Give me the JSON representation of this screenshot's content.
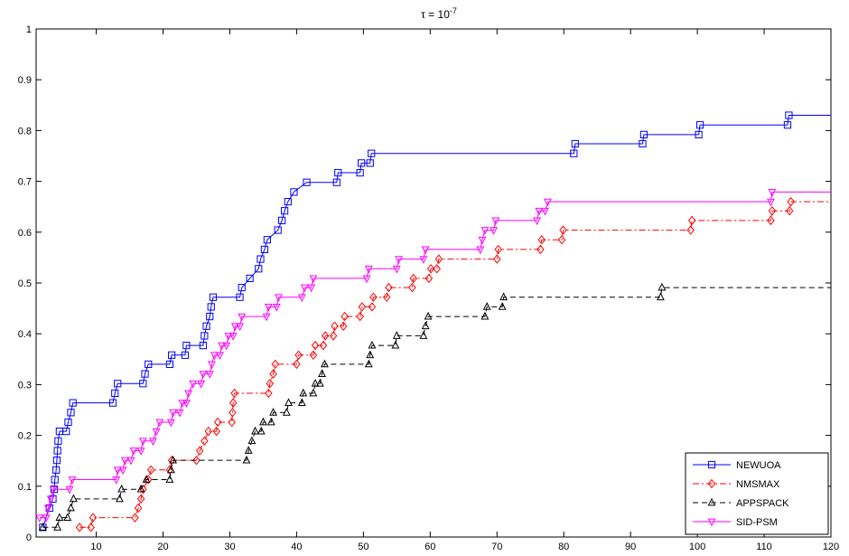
{
  "chart_data": {
    "type": "line",
    "title": "τ = 10",
    "title_exponent": "-7",
    "xlabel": "",
    "ylabel": "",
    "xlim": [
      1,
      120
    ],
    "ylim": [
      0,
      1
    ],
    "xticks": [
      10,
      20,
      30,
      40,
      50,
      60,
      70,
      80,
      90,
      100,
      110,
      120
    ],
    "yticks": [
      0,
      0.1,
      0.2,
      0.3,
      0.4,
      0.5,
      0.6,
      0.7,
      0.8,
      0.9,
      1
    ],
    "grid": false,
    "legend_position": "bottom-right",
    "series": [
      {
        "name": "NEWUOA",
        "color": "#0000ff",
        "dash": "solid",
        "marker": "square",
        "points": [
          [
            2,
            0.019
          ],
          [
            3,
            0.057
          ],
          [
            3.5,
            0.075
          ],
          [
            3.7,
            0.094
          ],
          [
            3.8,
            0.113
          ],
          [
            4,
            0.132
          ],
          [
            4.1,
            0.151
          ],
          [
            4.2,
            0.17
          ],
          [
            4.3,
            0.189
          ],
          [
            4.5,
            0.208
          ],
          [
            5.5,
            0.208
          ],
          [
            5.8,
            0.226
          ],
          [
            6.2,
            0.245
          ],
          [
            6.5,
            0.264
          ],
          [
            12.5,
            0.264
          ],
          [
            12.8,
            0.283
          ],
          [
            13.2,
            0.302
          ],
          [
            17,
            0.302
          ],
          [
            17.3,
            0.321
          ],
          [
            17.8,
            0.34
          ],
          [
            21,
            0.34
          ],
          [
            21.3,
            0.358
          ],
          [
            23.3,
            0.358
          ],
          [
            23.5,
            0.377
          ],
          [
            26,
            0.377
          ],
          [
            26.2,
            0.396
          ],
          [
            26.5,
            0.415
          ],
          [
            27,
            0.434
          ],
          [
            27.2,
            0.453
          ],
          [
            27.5,
            0.472
          ],
          [
            31.5,
            0.472
          ],
          [
            31.8,
            0.491
          ],
          [
            33,
            0.509
          ],
          [
            34.3,
            0.528
          ],
          [
            34.6,
            0.547
          ],
          [
            35.2,
            0.566
          ],
          [
            35.6,
            0.585
          ],
          [
            37.2,
            0.604
          ],
          [
            37.8,
            0.623
          ],
          [
            38.2,
            0.642
          ],
          [
            38.7,
            0.66
          ],
          [
            39.6,
            0.679
          ],
          [
            41.5,
            0.698
          ],
          [
            46,
            0.698
          ],
          [
            46.2,
            0.717
          ],
          [
            49.5,
            0.717
          ],
          [
            49.7,
            0.736
          ],
          [
            51,
            0.736
          ],
          [
            51.2,
            0.755
          ],
          [
            81.5,
            0.755
          ],
          [
            81.7,
            0.774
          ],
          [
            91.8,
            0.774
          ],
          [
            92,
            0.792
          ],
          [
            100.2,
            0.792
          ],
          [
            100.4,
            0.811
          ],
          [
            113.5,
            0.811
          ],
          [
            113.7,
            0.83
          ],
          [
            120,
            0.83
          ]
        ]
      },
      {
        "name": "NMSMAX",
        "color": "#ff0000",
        "dash": "dashdot",
        "marker": "diamond",
        "points": [
          [
            7.5,
            0.019
          ],
          [
            9.2,
            0.019
          ],
          [
            9.5,
            0.038
          ],
          [
            15.8,
            0.038
          ],
          [
            16.3,
            0.057
          ],
          [
            16.7,
            0.075
          ],
          [
            17,
            0.094
          ],
          [
            17.8,
            0.113
          ],
          [
            18.2,
            0.132
          ],
          [
            21,
            0.132
          ],
          [
            21.3,
            0.151
          ],
          [
            25,
            0.151
          ],
          [
            25.5,
            0.17
          ],
          [
            26.2,
            0.189
          ],
          [
            26.8,
            0.208
          ],
          [
            28,
            0.208
          ],
          [
            28.2,
            0.226
          ],
          [
            30.3,
            0.226
          ],
          [
            30.4,
            0.245
          ],
          [
            30.5,
            0.264
          ],
          [
            30.7,
            0.283
          ],
          [
            35.8,
            0.283
          ],
          [
            36,
            0.302
          ],
          [
            36.5,
            0.321
          ],
          [
            36.8,
            0.34
          ],
          [
            40,
            0.34
          ],
          [
            40.3,
            0.358
          ],
          [
            42.5,
            0.358
          ],
          [
            42.8,
            0.377
          ],
          [
            44,
            0.377
          ],
          [
            44.3,
            0.396
          ],
          [
            45.5,
            0.396
          ],
          [
            45.7,
            0.415
          ],
          [
            47,
            0.415
          ],
          [
            47.2,
            0.434
          ],
          [
            49.5,
            0.434
          ],
          [
            49.8,
            0.453
          ],
          [
            51.3,
            0.453
          ],
          [
            51.5,
            0.472
          ],
          [
            53.5,
            0.472
          ],
          [
            53.8,
            0.491
          ],
          [
            57.3,
            0.491
          ],
          [
            57.5,
            0.509
          ],
          [
            59.8,
            0.509
          ],
          [
            60.1,
            0.528
          ],
          [
            61,
            0.528
          ],
          [
            61.3,
            0.547
          ],
          [
            70,
            0.547
          ],
          [
            70.2,
            0.566
          ],
          [
            76.5,
            0.566
          ],
          [
            76.7,
            0.585
          ],
          [
            79.7,
            0.585
          ],
          [
            79.9,
            0.604
          ],
          [
            99,
            0.604
          ],
          [
            99.2,
            0.623
          ],
          [
            111,
            0.623
          ],
          [
            111.2,
            0.642
          ],
          [
            113.8,
            0.642
          ],
          [
            114,
            0.66
          ],
          [
            120,
            0.66
          ]
        ]
      },
      {
        "name": "APPSPACK",
        "color": "#000000",
        "dash": "dashed",
        "marker": "triangle-up",
        "points": [
          [
            2,
            0.019
          ],
          [
            4.2,
            0.019
          ],
          [
            4.5,
            0.038
          ],
          [
            5.7,
            0.038
          ],
          [
            6.2,
            0.057
          ],
          [
            6.6,
            0.075
          ],
          [
            13.5,
            0.075
          ],
          [
            13.8,
            0.094
          ],
          [
            16.7,
            0.094
          ],
          [
            17.5,
            0.113
          ],
          [
            21,
            0.113
          ],
          [
            21.2,
            0.132
          ],
          [
            21.5,
            0.151
          ],
          [
            32.5,
            0.151
          ],
          [
            32.8,
            0.17
          ],
          [
            33.3,
            0.189
          ],
          [
            33.8,
            0.208
          ],
          [
            34.7,
            0.208
          ],
          [
            35,
            0.226
          ],
          [
            36.2,
            0.226
          ],
          [
            36.5,
            0.245
          ],
          [
            38.5,
            0.245
          ],
          [
            38.8,
            0.264
          ],
          [
            40.8,
            0.264
          ],
          [
            41,
            0.283
          ],
          [
            42.5,
            0.283
          ],
          [
            42.8,
            0.302
          ],
          [
            43.5,
            0.302
          ],
          [
            43.8,
            0.321
          ],
          [
            44.2,
            0.34
          ],
          [
            50.8,
            0.34
          ],
          [
            51,
            0.358
          ],
          [
            51.3,
            0.377
          ],
          [
            54.8,
            0.377
          ],
          [
            55,
            0.396
          ],
          [
            59,
            0.396
          ],
          [
            59.3,
            0.415
          ],
          [
            59.7,
            0.434
          ],
          [
            68.2,
            0.434
          ],
          [
            68.5,
            0.453
          ],
          [
            70.8,
            0.453
          ],
          [
            71,
            0.472
          ],
          [
            94.5,
            0.472
          ],
          [
            94.7,
            0.491
          ],
          [
            120,
            0.491
          ]
        ]
      },
      {
        "name": "SID-PSM",
        "color": "#ff00ff",
        "dash": "solid",
        "marker": "triangle-down",
        "points": [
          [
            1.5,
            0.038
          ],
          [
            2.5,
            0.038
          ],
          [
            2.8,
            0.057
          ],
          [
            3.2,
            0.075
          ],
          [
            3.6,
            0.094
          ],
          [
            6,
            0.094
          ],
          [
            6.4,
            0.113
          ],
          [
            13,
            0.113
          ],
          [
            13.2,
            0.132
          ],
          [
            14,
            0.132
          ],
          [
            14.3,
            0.151
          ],
          [
            15.2,
            0.151
          ],
          [
            15.6,
            0.17
          ],
          [
            16.7,
            0.17
          ],
          [
            17,
            0.189
          ],
          [
            18.5,
            0.189
          ],
          [
            19,
            0.208
          ],
          [
            19.5,
            0.226
          ],
          [
            21.2,
            0.226
          ],
          [
            21.5,
            0.245
          ],
          [
            22.5,
            0.245
          ],
          [
            22.9,
            0.264
          ],
          [
            23.5,
            0.264
          ],
          [
            23.8,
            0.283
          ],
          [
            24.5,
            0.302
          ],
          [
            25.7,
            0.302
          ],
          [
            26,
            0.321
          ],
          [
            27,
            0.321
          ],
          [
            27.3,
            0.34
          ],
          [
            27.7,
            0.358
          ],
          [
            28.5,
            0.358
          ],
          [
            28.8,
            0.377
          ],
          [
            29.5,
            0.377
          ],
          [
            29.8,
            0.396
          ],
          [
            30.5,
            0.396
          ],
          [
            30.8,
            0.415
          ],
          [
            31.5,
            0.415
          ],
          [
            31.8,
            0.434
          ],
          [
            35.5,
            0.434
          ],
          [
            35.8,
            0.453
          ],
          [
            37,
            0.453
          ],
          [
            37.3,
            0.472
          ],
          [
            40.8,
            0.472
          ],
          [
            41.2,
            0.491
          ],
          [
            42.2,
            0.491
          ],
          [
            42.5,
            0.509
          ],
          [
            50.5,
            0.509
          ],
          [
            50.8,
            0.528
          ],
          [
            55,
            0.528
          ],
          [
            55.3,
            0.547
          ],
          [
            59,
            0.547
          ],
          [
            59.3,
            0.566
          ],
          [
            67.5,
            0.566
          ],
          [
            67.8,
            0.585
          ],
          [
            68.2,
            0.604
          ],
          [
            69.5,
            0.604
          ],
          [
            69.8,
            0.623
          ],
          [
            76,
            0.623
          ],
          [
            76.3,
            0.642
          ],
          [
            77.2,
            0.642
          ],
          [
            77.6,
            0.66
          ],
          [
            111,
            0.66
          ],
          [
            111.2,
            0.679
          ],
          [
            120,
            0.679
          ]
        ]
      }
    ]
  }
}
